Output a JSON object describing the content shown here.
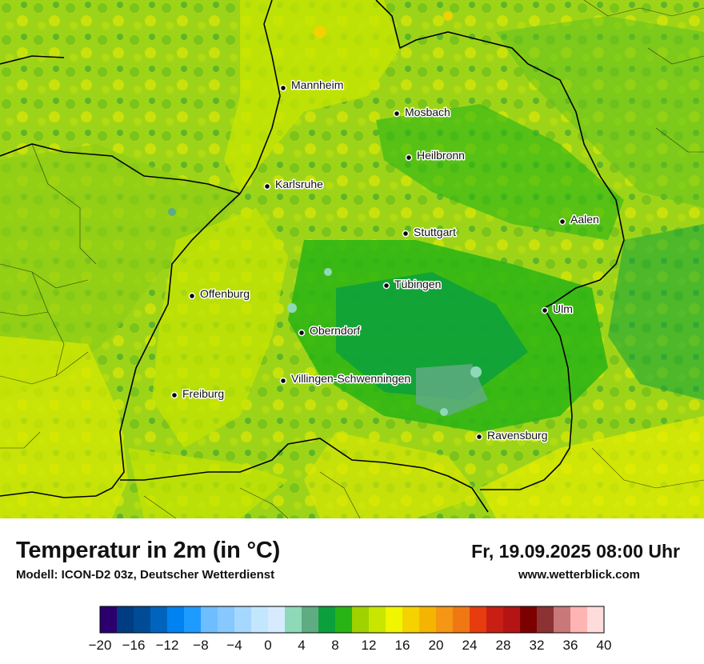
{
  "map": {
    "cities": [
      {
        "name": "Mannheim"
      },
      {
        "name": "Mosbach"
      },
      {
        "name": "Heilbronn"
      },
      {
        "name": "Karlsruhe"
      },
      {
        "name": "Aalen"
      },
      {
        "name": "Stuttgart"
      },
      {
        "name": "Tübingen"
      },
      {
        "name": "Offenburg"
      },
      {
        "name": "Ulm"
      },
      {
        "name": "Oberndorf"
      },
      {
        "name": "Villingen-Schwenningen"
      },
      {
        "name": "Freiburg"
      },
      {
        "name": "Ravensburg"
      }
    ]
  },
  "footer": {
    "title": "Temperatur in 2m (in °C)",
    "subtitle": "Modell: ICON-D2 03z, Deutscher Wetterdienst",
    "datetime": "Fr, 19.09.2025 08:00 Uhr",
    "website": "www.wetterblick.com"
  },
  "scale": {
    "tick_labels": [
      "−20",
      "−16",
      "−12",
      "−8",
      "−4",
      "0",
      "4",
      "8",
      "12",
      "16",
      "20",
      "24",
      "28",
      "32",
      "36",
      "40"
    ],
    "colors": [
      "#2b006e",
      "#003c82",
      "#004b96",
      "#0064be",
      "#0082f0",
      "#1e9bff",
      "#6ebeff",
      "#87c8ff",
      "#a5d7ff",
      "#c3e6ff",
      "#d7ebff",
      "#8ed9b8",
      "#5fac82",
      "#0ca03c",
      "#28b414",
      "#a0d200",
      "#c8e600",
      "#f0f500",
      "#f5d200",
      "#f5b400",
      "#f59614",
      "#f07814",
      "#e63c0f",
      "#c81e14",
      "#b41414",
      "#7d0000",
      "#8c3232",
      "#c87878",
      "#ffb4b4",
      "#ffdcdc"
    ]
  }
}
